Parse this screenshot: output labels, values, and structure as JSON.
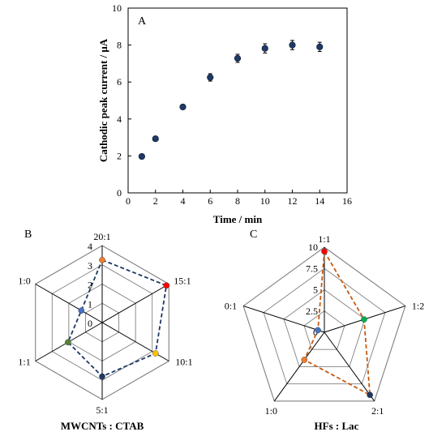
{
  "chart_data": [
    {
      "type": "scatter",
      "panel_label": "A",
      "xlabel": "Time / min",
      "ylabel": "Cathodic peak current / μA",
      "xlim": [
        0,
        16
      ],
      "ylim": [
        0,
        10
      ],
      "x_ticks": [
        0,
        2,
        4,
        6,
        8,
        10,
        12,
        14,
        16
      ],
      "y_ticks": [
        0,
        2,
        4,
        6,
        8,
        10
      ],
      "x": [
        1,
        2,
        4,
        6,
        8,
        10,
        12,
        14
      ],
      "y": [
        1.97,
        2.93,
        4.65,
        6.25,
        7.28,
        7.82,
        8.0,
        7.9
      ],
      "errors": [
        0.05,
        0.1,
        0.12,
        0.2,
        0.22,
        0.25,
        0.25,
        0.25
      ],
      "marker_color": "#1f3864",
      "grid": false
    },
    {
      "type": "radar",
      "panel_label": "B",
      "xlabel": "MWCNTs : CTAB",
      "categories": [
        "20:1",
        "15:1",
        "10:1",
        "5:1",
        "1:1",
        "1:0"
      ],
      "values": [
        3.25,
        3.85,
        3.2,
        2.8,
        2.05,
        1.25
      ],
      "point_colors": [
        "#ed7d31",
        "#ff0000",
        "#ffc000",
        "#1f3864",
        "#548235",
        "#4472c4"
      ],
      "line_color": "#1f3864",
      "rmax": 4,
      "rings": [
        1,
        2,
        3,
        4
      ],
      "ring_labels": [
        "0",
        "1",
        "2",
        "3",
        "4"
      ]
    },
    {
      "type": "radar",
      "panel_label": "C",
      "xlabel": "HFs : Lac",
      "categories": [
        "1:1",
        "1:2",
        "2:1",
        "1:0",
        "0:1"
      ],
      "values": [
        9.5,
        4.9,
        9.1,
        4.0,
        0.8
      ],
      "point_colors": [
        "#ff0000",
        "#00b050",
        "#1f3864",
        "#ed7d31",
        "#4472c4"
      ],
      "line_color": "#c55a11",
      "rmax": 10,
      "rings": [
        2.5,
        5,
        7.5,
        10
      ],
      "ring_labels": [
        "0",
        "2.5",
        "5",
        "7.5",
        "10"
      ]
    }
  ]
}
